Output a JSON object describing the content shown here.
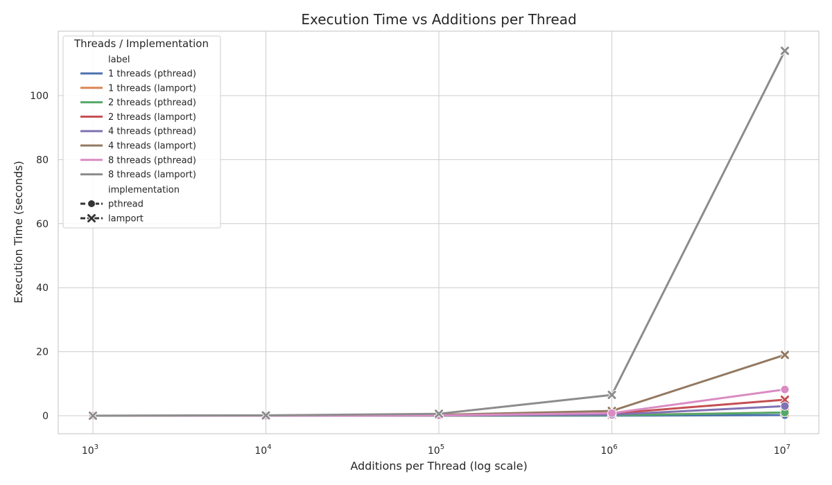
{
  "chart_data": {
    "type": "line",
    "title": "Execution Time vs Additions per Thread",
    "xlabel": "Additions per Thread (log scale)",
    "ylabel": "Execution Time (seconds)",
    "x_scale": "log",
    "x": [
      1000,
      10000,
      100000,
      1000000,
      10000000
    ],
    "x_ticks": [
      {
        "value": 1000,
        "base": "10",
        "exp": "3"
      },
      {
        "value": 10000,
        "base": "10",
        "exp": "4"
      },
      {
        "value": 100000,
        "base": "10",
        "exp": "5"
      },
      {
        "value": 1000000,
        "base": "10",
        "exp": "6"
      },
      {
        "value": 10000000,
        "base": "10",
        "exp": "7"
      }
    ],
    "y_ticks": [
      0,
      20,
      40,
      60,
      80,
      100
    ],
    "ylim": [
      -5.7,
      120
    ],
    "grid": true,
    "legend": {
      "title": "Threads / Implementation",
      "placement": "top-left",
      "label_header": "label",
      "implementation_header": "implementation",
      "markers": [
        {
          "name": "pthread",
          "marker": "circle"
        },
        {
          "name": "lamport",
          "marker": "x"
        }
      ]
    },
    "series": [
      {
        "name": "1 threads (pthread)",
        "color": "#4c72b0",
        "marker": "circle",
        "values": [
          0.0,
          0.0,
          0.01,
          0.03,
          0.2
        ]
      },
      {
        "name": "1 threads (lamport)",
        "color": "#dd8452",
        "marker": "x",
        "values": [
          0.0,
          0.0,
          0.02,
          0.2,
          1.0
        ]
      },
      {
        "name": "2 threads (pthread)",
        "color": "#55a868",
        "marker": "circle",
        "values": [
          0.0,
          0.0,
          0.02,
          0.1,
          1.0
        ]
      },
      {
        "name": "2 threads (lamport)",
        "color": "#c44e52",
        "marker": "x",
        "values": [
          0.0,
          0.0,
          0.1,
          0.7,
          5.0
        ]
      },
      {
        "name": "4 threads (pthread)",
        "color": "#8172b3",
        "marker": "circle",
        "values": [
          0.0,
          0.0,
          0.05,
          0.3,
          3.0
        ]
      },
      {
        "name": "4 threads (lamport)",
        "color": "#937860",
        "marker": "x",
        "values": [
          0.0,
          0.1,
          0.3,
          1.5,
          19.0
        ]
      },
      {
        "name": "8 threads (pthread)",
        "color": "#da8bc3",
        "marker": "circle",
        "values": [
          0.0,
          0.0,
          0.1,
          0.8,
          8.2
        ]
      },
      {
        "name": "8 threads (lamport)",
        "color": "#8c8c8c",
        "marker": "x",
        "values": [
          0.0,
          0.1,
          0.6,
          6.5,
          114.0
        ]
      }
    ]
  }
}
